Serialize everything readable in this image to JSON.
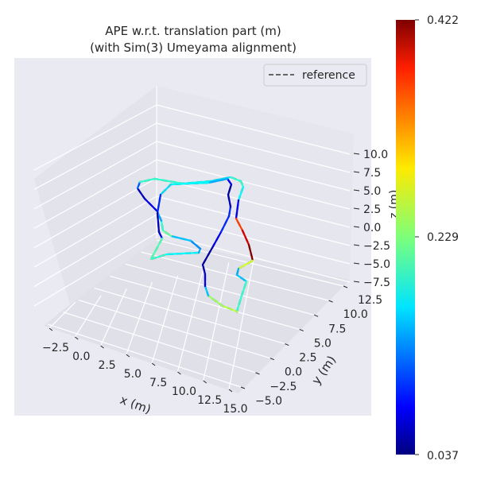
{
  "chart_data": {
    "type": "line3d",
    "title_line1": "APE w.r.t. translation part (m)",
    "title_line2": "(with Sim(3) Umeyama alignment)",
    "xlabel": "x (m)",
    "ylabel": "y (m)",
    "zlabel": "z (m)",
    "x_ticks": [
      "−2.5",
      "0.0",
      "2.5",
      "5.0",
      "7.5",
      "10.0",
      "12.5",
      "15.0"
    ],
    "y_ticks": [
      "−5.0",
      "−2.5",
      "0.0",
      "2.5",
      "5.0",
      "7.5",
      "10.0",
      "12.5"
    ],
    "z_ticks": [
      "10.0",
      "7.5",
      "5.0",
      "2.5",
      "0.0",
      "−2.5",
      "−5.0",
      "−7.5"
    ],
    "legend": {
      "label": "reference",
      "placement": "top-right"
    },
    "colorbar": {
      "min": 0.037,
      "max": 0.422,
      "ticks": [
        "0.422",
        "0.229",
        "0.037"
      ],
      "colormap": "jet"
    },
    "grid": true
  }
}
